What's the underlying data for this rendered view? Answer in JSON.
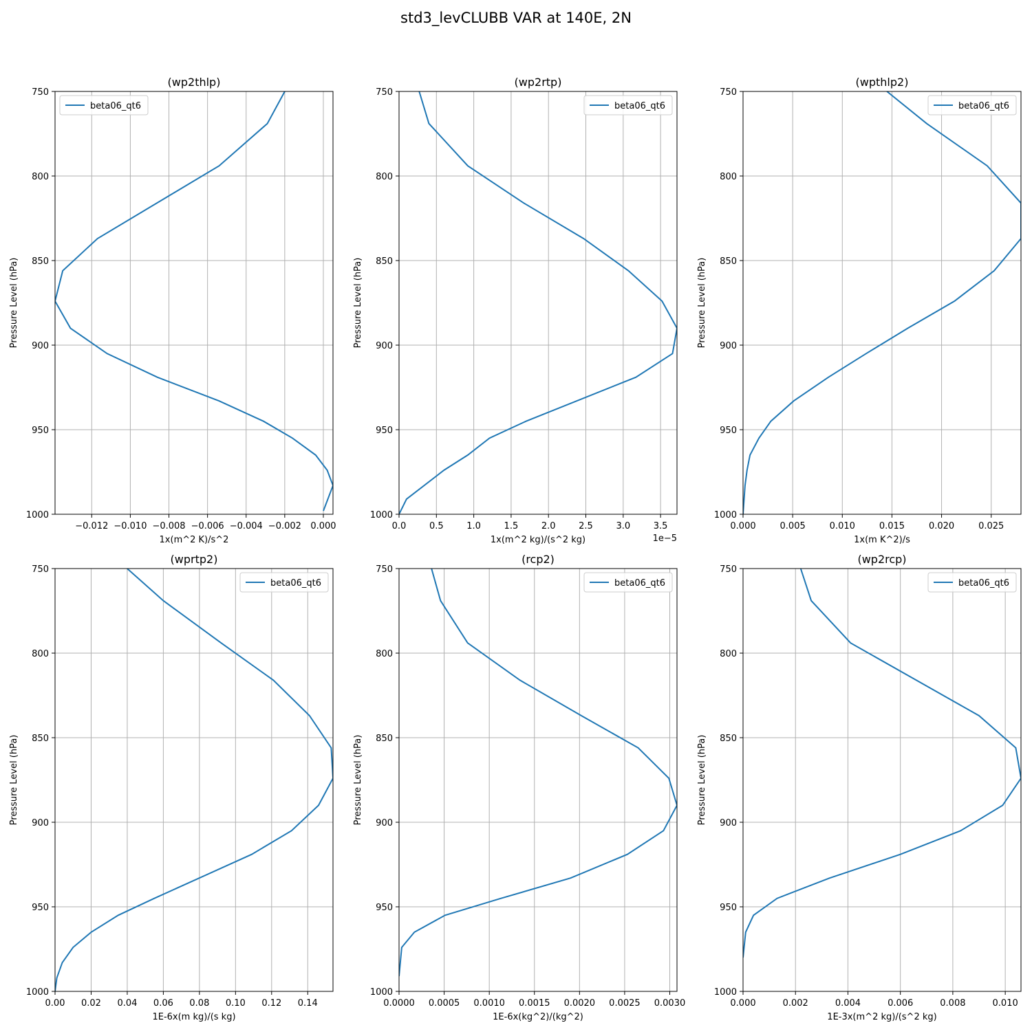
{
  "figure": {
    "suptitle": "std3_levCLUBB VAR at 140E, 2N",
    "line_color": "#1f77b4",
    "grid_color": "#b0b0b0"
  },
  "chart_data": [
    {
      "type": "line",
      "title": "(wp2thlp)",
      "xlabel": "1x(m^2 K)/s^2",
      "ylabel": "Pressure Level (hPa)",
      "xlim": [
        -0.0139,
        0.0005
      ],
      "ylim": [
        1000,
        750
      ],
      "yaxis_inverted": true,
      "grid": true,
      "legend": "upper left",
      "x_ticks": [
        -0.012,
        -0.01,
        -0.008,
        -0.006,
        -0.004,
        -0.002,
        0.0
      ],
      "x_tick_labels": [
        "−0.012",
        "−0.010",
        "−0.008",
        "−0.006",
        "−0.004",
        "−0.002",
        "0.000"
      ],
      "y_ticks": [
        750,
        800,
        850,
        900,
        950,
        1000
      ],
      "y_tick_labels": [
        "750",
        "800",
        "850",
        "900",
        "950",
        "1000"
      ],
      "offset_text": "",
      "series": [
        {
          "name": "beta06_qt6",
          "x": [
            -0.002,
            -0.0029,
            -0.0054,
            -0.0117,
            -0.0135,
            -0.0139,
            -0.0131,
            -0.0112,
            -0.0086,
            -0.0054,
            -0.0031,
            -0.0016,
            -0.0004,
            0.0002,
            0.0005,
            0.0
          ],
          "y": [
            750,
            769,
            794,
            837,
            856,
            874,
            890,
            905,
            919,
            933,
            945,
            955,
            965,
            974,
            983,
            998
          ]
        }
      ]
    },
    {
      "type": "line",
      "title": "(wp2rtp)",
      "xlabel": "1x(m^2 kg)/(s^2 kg)",
      "ylabel": "Pressure Level (hPa)",
      "xlim": [
        0.0,
        3.72
      ],
      "ylim": [
        1000,
        750
      ],
      "yaxis_inverted": true,
      "grid": true,
      "legend": "upper right",
      "x_ticks": [
        0.0,
        0.5,
        1.0,
        1.5,
        2.0,
        2.5,
        3.0,
        3.5
      ],
      "x_tick_labels": [
        "0.0",
        "0.5",
        "1.0",
        "1.5",
        "2.0",
        "2.5",
        "3.0",
        "3.5"
      ],
      "y_ticks": [
        750,
        800,
        850,
        900,
        950,
        1000
      ],
      "y_tick_labels": [
        "750",
        "800",
        "850",
        "900",
        "950",
        "1000"
      ],
      "offset_text": "1e−5",
      "series": [
        {
          "name": "beta06_qt6",
          "x": [
            0.27,
            0.4,
            0.92,
            1.67,
            2.47,
            3.07,
            3.52,
            3.72,
            3.66,
            3.17,
            1.7,
            1.21,
            0.92,
            0.6,
            0.1,
            0.0
          ],
          "y": [
            750,
            769,
            794,
            816,
            837,
            856,
            874,
            890,
            905,
            919,
            945,
            955,
            965,
            974,
            991,
            1000
          ]
        }
      ]
    },
    {
      "type": "line",
      "title": "(wpthlp2)",
      "xlabel": "1x(m K^2)/s",
      "ylabel": "Pressure Level (hPa)",
      "xlim": [
        0.0,
        0.028
      ],
      "ylim": [
        1000,
        750
      ],
      "yaxis_inverted": true,
      "grid": true,
      "legend": "upper right",
      "x_ticks": [
        0.0,
        0.005,
        0.01,
        0.015,
        0.02,
        0.025
      ],
      "x_tick_labels": [
        "0.000",
        "0.005",
        "0.010",
        "0.015",
        "0.020",
        "0.025"
      ],
      "y_ticks": [
        750,
        800,
        850,
        900,
        950,
        1000
      ],
      "y_tick_labels": [
        "750",
        "800",
        "850",
        "900",
        "950",
        "1000"
      ],
      "offset_text": "",
      "series": [
        {
          "name": "beta06_qt6",
          "x": [
            0.0145,
            0.0185,
            0.0246,
            0.028,
            0.028,
            0.0253,
            0.0213,
            0.0166,
            0.0124,
            0.0086,
            0.0051,
            0.0028,
            0.0016,
            0.0007,
            0.0004,
            0.0002,
            0.0
          ],
          "y": [
            750,
            769,
            794,
            816,
            837,
            856,
            874,
            890,
            905,
            919,
            933,
            945,
            955,
            965,
            974,
            983,
            1000
          ]
        }
      ]
    },
    {
      "type": "line",
      "title": "(wprtp2)",
      "xlabel": "1E-6x(m kg)/(s kg)",
      "ylabel": "Pressure Level (hPa)",
      "xlim": [
        0.0,
        0.154
      ],
      "ylim": [
        1000,
        750
      ],
      "yaxis_inverted": true,
      "grid": true,
      "legend": "upper right",
      "x_ticks": [
        0.0,
        0.02,
        0.04,
        0.06,
        0.08,
        0.1,
        0.12,
        0.14
      ],
      "x_tick_labels": [
        "0.00",
        "0.02",
        "0.04",
        "0.06",
        "0.08",
        "0.10",
        "0.12",
        "0.14"
      ],
      "y_ticks": [
        750,
        800,
        850,
        900,
        950,
        1000
      ],
      "y_tick_labels": [
        "750",
        "800",
        "850",
        "900",
        "950",
        "1000"
      ],
      "offset_text": "",
      "series": [
        {
          "name": "beta06_qt6",
          "x": [
            0.04,
            0.06,
            0.092,
            0.121,
            0.141,
            0.153,
            0.154,
            0.146,
            0.131,
            0.109,
            0.055,
            0.035,
            0.02,
            0.01,
            0.004,
            0.001,
            0.0
          ],
          "y": [
            750,
            769,
            794,
            816,
            837,
            856,
            874,
            890,
            905,
            919,
            945,
            955,
            965,
            974,
            983,
            992,
            1000
          ]
        }
      ]
    },
    {
      "type": "line",
      "title": "(rcp2)",
      "xlabel": "1E-6x(kg^2)/(kg^2)",
      "ylabel": "Pressure Level (hPa)",
      "xlim": [
        0.0,
        0.00308
      ],
      "ylim": [
        1000,
        750
      ],
      "yaxis_inverted": true,
      "grid": true,
      "legend": "upper right",
      "x_ticks": [
        0.0,
        0.0005,
        0.001,
        0.0015,
        0.002,
        0.0025,
        0.003
      ],
      "x_tick_labels": [
        "0.0000",
        "0.0005",
        "0.0010",
        "0.0015",
        "0.0020",
        "0.0025",
        "0.0030"
      ],
      "y_ticks": [
        750,
        800,
        850,
        900,
        950,
        1000
      ],
      "y_tick_labels": [
        "750",
        "800",
        "850",
        "900",
        "950",
        "1000"
      ],
      "offset_text": "",
      "series": [
        {
          "name": "beta06_qt6",
          "x": [
            0.00036,
            0.00046,
            0.00076,
            0.00134,
            0.00202,
            0.00265,
            0.00299,
            0.00308,
            0.00293,
            0.00253,
            0.0019,
            0.00113,
            0.00051,
            0.00017,
            3e-05,
            0.0
          ],
          "y": [
            750,
            769,
            794,
            816,
            837,
            856,
            874,
            890,
            905,
            919,
            933,
            945,
            955,
            965,
            974,
            991
          ]
        }
      ]
    },
    {
      "type": "line",
      "title": "(wp2rcp)",
      "xlabel": "1E-3x(m^2 kg)/(s^2 kg)",
      "ylabel": "Pressure Level (hPa)",
      "xlim": [
        0.0,
        0.0106
      ],
      "ylim": [
        1000,
        750
      ],
      "yaxis_inverted": true,
      "grid": true,
      "legend": "upper right",
      "x_ticks": [
        0.0,
        0.002,
        0.004,
        0.006,
        0.008,
        0.01
      ],
      "x_tick_labels": [
        "0.000",
        "0.002",
        "0.004",
        "0.006",
        "0.008",
        "0.010"
      ],
      "y_ticks": [
        750,
        800,
        850,
        900,
        950,
        1000
      ],
      "y_tick_labels": [
        "750",
        "800",
        "850",
        "900",
        "950",
        "1000"
      ],
      "offset_text": "",
      "series": [
        {
          "name": "beta06_qt6",
          "x": [
            0.0022,
            0.0026,
            0.0041,
            0.009,
            0.0104,
            0.0106,
            0.0099,
            0.0083,
            0.006,
            0.0033,
            0.0013,
            0.0004,
            0.0001,
            0.0
          ],
          "y": [
            750,
            769,
            794,
            837,
            856,
            874,
            890,
            905,
            919,
            933,
            945,
            955,
            965,
            980
          ]
        }
      ]
    }
  ]
}
